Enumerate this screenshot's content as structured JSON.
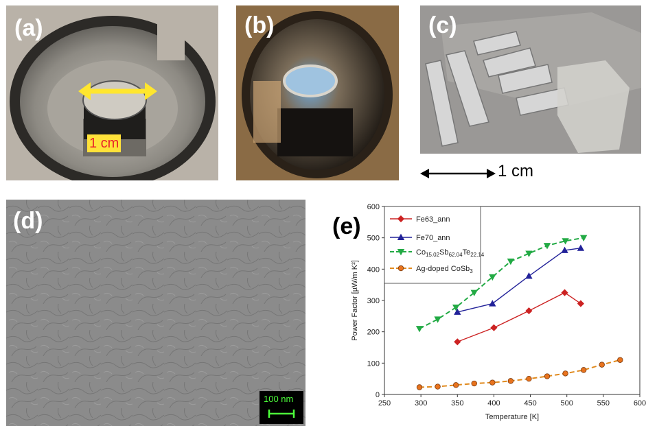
{
  "panels": {
    "a": {
      "label": "(a)",
      "scale_text": "1 cm"
    },
    "b": {
      "label": "(b)"
    },
    "c": {
      "label": "(c)",
      "scale_text": "1 cm"
    },
    "d": {
      "label": "(d)",
      "scale_text": "100 nm"
    },
    "e": {
      "label": "(e)"
    }
  },
  "colors": {
    "fe63": "#cc2222",
    "fe70": "#222299",
    "co": "#22aa44",
    "ag": "#e08a1e",
    "scale_green": "#4cff3a",
    "highlight_yellow": "#ffe23a"
  },
  "chart_data": {
    "type": "line",
    "title": "",
    "xlabel": "Temperature [K]",
    "ylabel": "Power Factor [µW/m K²]",
    "xlim": [
      250,
      600
    ],
    "ylim": [
      0,
      600
    ],
    "xticks": [
      250,
      300,
      350,
      400,
      450,
      500,
      550,
      600
    ],
    "yticks": [
      0,
      100,
      200,
      300,
      400,
      500,
      600
    ],
    "legend_position": "top-left",
    "series": [
      {
        "name": "Fe63_ann",
        "marker": "diamond",
        "dash": "solid",
        "x": [
          350,
          400,
          448,
          497,
          519
        ],
        "y": [
          168,
          213,
          267,
          325,
          290
        ]
      },
      {
        "name": "Fe70_ann",
        "marker": "triangle-up",
        "dash": "solid",
        "x": [
          350,
          398,
          448,
          497,
          519
        ],
        "y": [
          263,
          290,
          378,
          460,
          467
        ]
      },
      {
        "name": "Co15.02Sb62.04Te22.14",
        "name_parts": {
          "a": "Co",
          "as": "15.02",
          "b": "Sb",
          "bs": "62.04",
          "c": "Te",
          "cs": "22.14"
        },
        "marker": "triangle-down",
        "dash": "dashed",
        "x": [
          298,
          323,
          348,
          373,
          398,
          423,
          448,
          473,
          498,
          523
        ],
        "y": [
          210,
          240,
          278,
          325,
          375,
          425,
          450,
          475,
          490,
          500
        ]
      },
      {
        "name": "Ag-doped CoSb3",
        "name_parts": {
          "a": "Ag-doped CoSb",
          "as": "3"
        },
        "marker": "circle",
        "dash": "dashed",
        "x": [
          298,
          323,
          348,
          373,
          398,
          423,
          448,
          473,
          498,
          523,
          548,
          573
        ],
        "y": [
          23,
          25,
          30,
          35,
          38,
          43,
          50,
          58,
          67,
          78,
          95,
          110
        ]
      }
    ]
  }
}
